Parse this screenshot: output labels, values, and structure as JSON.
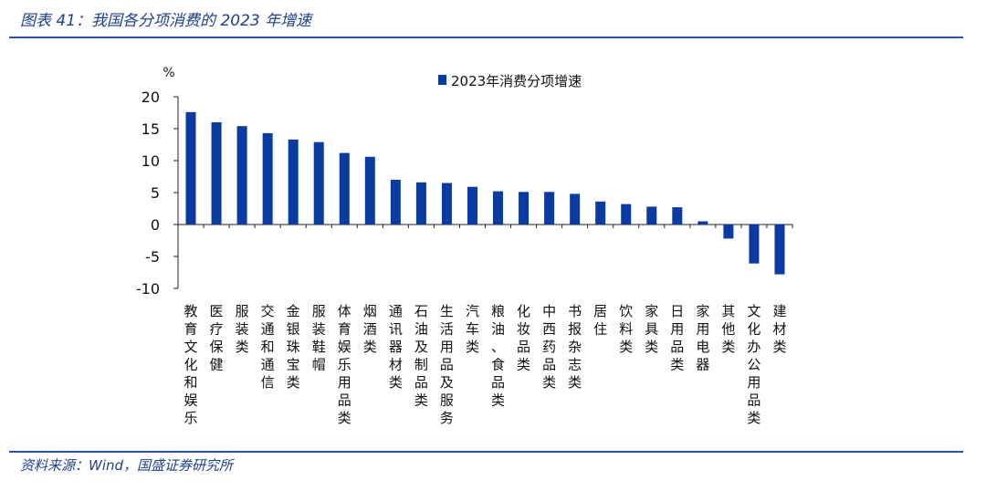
{
  "header": {
    "title": "图表 41：我国各分项消费的 2023 年增速"
  },
  "footer": {
    "source": "资料来源：Wind，国盛证券研究所"
  },
  "colors": {
    "bar": "#0b3aa0",
    "rule": "#2a52a7",
    "title_text": "#1f3f8f"
  },
  "chart_data": {
    "type": "bar",
    "title": "",
    "xlabel": "",
    "ylabel": "%",
    "ylim": [
      -10,
      20
    ],
    "yticks": [
      20,
      15,
      10,
      5,
      0,
      -5,
      -10
    ],
    "grid": false,
    "legend_position": "top",
    "categories": [
      "教育文化和娱乐",
      "医疗保健",
      "服装类",
      "交通和通信",
      "金银珠宝类",
      "服装鞋帽",
      "体育娱乐用品类",
      "烟酒类",
      "通讯器材类",
      "石油及制品类",
      "生活用品及服务",
      "汽车类",
      "粮油、食品类",
      "化妆品类",
      "中西药品类",
      "书报杂志类",
      "居住",
      "饮料类",
      "家具类",
      "日用品类",
      "家用电器",
      "其他类",
      "文化办公用品类",
      "建材类"
    ],
    "series": [
      {
        "name": "2023年消费分项增速",
        "values": [
          17.6,
          16.0,
          15.4,
          14.3,
          13.3,
          12.9,
          11.2,
          10.6,
          7.0,
          6.6,
          6.5,
          5.9,
          5.2,
          5.1,
          5.1,
          4.8,
          3.6,
          3.2,
          2.8,
          2.7,
          0.5,
          -2.2,
          -6.1,
          -7.8
        ]
      }
    ]
  }
}
